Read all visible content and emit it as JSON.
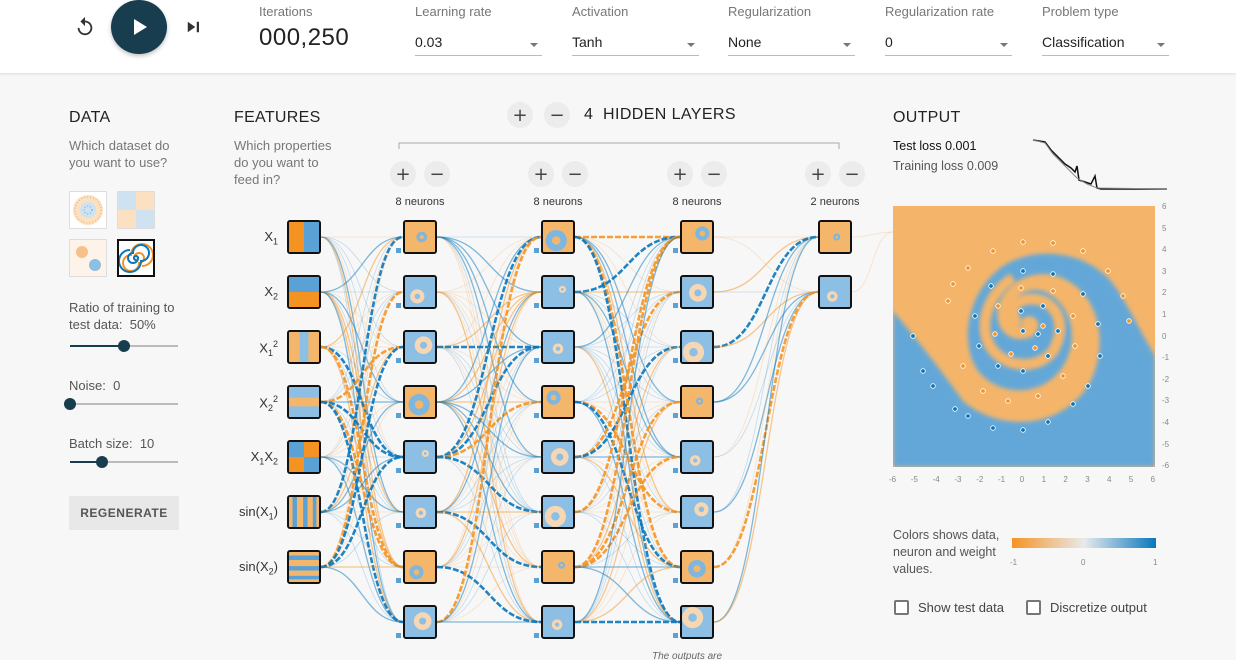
{
  "controls": {
    "reset": "reset-icon",
    "play": "play-icon",
    "step": "step-forward-icon"
  },
  "top": {
    "iterations_label": "Iterations",
    "iterations_value": "000,250",
    "fields": [
      {
        "label": "Learning rate",
        "value": "0.03"
      },
      {
        "label": "Activation",
        "value": "Tanh"
      },
      {
        "label": "Regularization",
        "value": "None"
      },
      {
        "label": "Regularization rate",
        "value": "0"
      },
      {
        "label": "Problem type",
        "value": "Classification"
      }
    ]
  },
  "data_panel": {
    "title": "DATA",
    "subtitle": "Which dataset do you want to use?",
    "datasets": [
      "circle-dataset",
      "xor-dataset",
      "gaussian-dataset",
      "spiral-dataset"
    ],
    "selected_dataset": "spiral-dataset",
    "ratio_label": "Ratio of training to test data:",
    "ratio_value": "50%",
    "ratio_fraction": 0.5,
    "noise_label": "Noise:",
    "noise_value": "0",
    "noise_fraction": 0,
    "batch_label": "Batch size:",
    "batch_value": "10",
    "batch_fraction": 0.3,
    "regenerate": "REGENERATE"
  },
  "features": {
    "title": "FEATURES",
    "subtitle": "Which properties do you want to feed in?",
    "items": [
      {
        "name": "x1",
        "base": "X",
        "sub": "1",
        "sup": ""
      },
      {
        "name": "x2",
        "base": "X",
        "sub": "2",
        "sup": ""
      },
      {
        "name": "x1-squared",
        "base": "X",
        "sub": "1",
        "sup": "2"
      },
      {
        "name": "x2-squared",
        "base": "X",
        "sub": "2",
        "sup": "2"
      },
      {
        "name": "x1x2",
        "base": "X",
        "sub": "1",
        "mid": "X",
        "sub2": "2",
        "sup": ""
      },
      {
        "name": "sin-x1",
        "base": "sin(X",
        "sub": "1",
        "tail": ")",
        "sup": ""
      },
      {
        "name": "sin-x2",
        "base": "sin(X",
        "sub": "2",
        "tail": ")",
        "sup": ""
      }
    ]
  },
  "network": {
    "hidden_count": "4",
    "hidden_title": "HIDDEN LAYERS",
    "layers": [
      {
        "label": "8 neurons",
        "neurons": 8
      },
      {
        "label": "8 neurons",
        "neurons": 8
      },
      {
        "label": "8 neurons",
        "neurons": 8
      },
      {
        "label": "2 neurons",
        "neurons": 2
      }
    ],
    "annotation": "The outputs are"
  },
  "output": {
    "title": "OUTPUT",
    "test_loss_label": "Test loss",
    "test_loss_value": "0.001",
    "training_loss_label": "Training loss",
    "training_loss_value": "0.009",
    "y_ticks": [
      "6",
      "5",
      "4",
      "3",
      "2",
      "1",
      "0",
      "-1",
      "-2",
      "-3",
      "-4",
      "-5",
      "-6"
    ],
    "x_ticks": [
      "-6",
      "-5",
      "-4",
      "-3",
      "-2",
      "-1",
      "0",
      "1",
      "2",
      "3",
      "4",
      "5",
      "6"
    ],
    "legend_text": "Colors shows data, neuron and weight values.",
    "colorbar_ticks": [
      "-1",
      "0",
      "1"
    ],
    "show_test_data": "Show test data",
    "discretize_output": "Discretize output"
  },
  "colors": {
    "orange": "#f59322",
    "blue": "#0877bd",
    "dark": "#183d4e"
  }
}
